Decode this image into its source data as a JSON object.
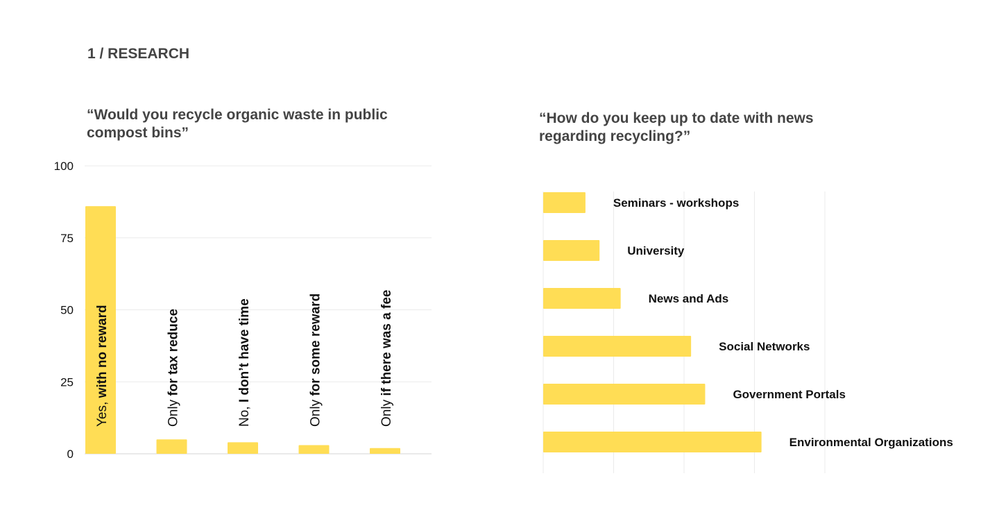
{
  "section": {
    "label": "1 / RESEARCH"
  },
  "colors": {
    "bar": "#FFDD55",
    "grid": "#EBEBEB",
    "axis": "#D6D6D6",
    "text": "#111111",
    "title": "#444444"
  },
  "chart_data": [
    {
      "type": "bar",
      "title": "“Would you recycle organic waste in public compost bins”",
      "categories": [
        {
          "normal": "Yes, ",
          "bold": "with no reward"
        },
        {
          "normal": "Only ",
          "bold": "for tax reduce"
        },
        {
          "normal": "No, ",
          "bold": "I don’t have time"
        },
        {
          "normal": "Only ",
          "bold": "for some reward"
        },
        {
          "normal": "Only ",
          "bold": "if there was a fee"
        }
      ],
      "values": [
        86,
        5,
        4,
        3,
        2
      ],
      "ylim": [
        0,
        100
      ],
      "yticks": [
        0,
        25,
        50,
        75,
        100
      ],
      "grid": true
    },
    {
      "type": "bar",
      "orientation": "horizontal",
      "title": "“How do you keep up to date with news regarding recycling?”",
      "categories": [
        "Seminars - workshops",
        "University",
        "News and Ads",
        "Social Networks",
        "Government Portals",
        "Environmental Organizations"
      ],
      "values": [
        6,
        8,
        11,
        21,
        23,
        31
      ],
      "xlim": [
        0,
        40
      ],
      "grid": true
    }
  ]
}
